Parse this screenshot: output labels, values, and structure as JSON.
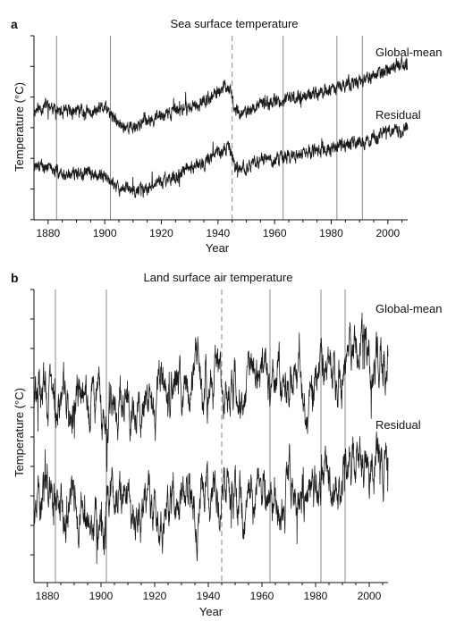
{
  "chart_data": [
    {
      "panel": "a",
      "type": "line",
      "title": "Sea surface temperature",
      "xlabel": "Year",
      "ylabel": "Temperature (°C)",
      "xlim": [
        1875,
        2007
      ],
      "x_ticks": [
        1880,
        1900,
        1920,
        1940,
        1960,
        1980,
        2000
      ],
      "y_tick_count": 7,
      "ylim": [
        -0.2,
        6.2
      ],
      "grid": false,
      "reference_lines": {
        "solid": [
          1883,
          1902,
          1963,
          1982,
          1991
        ],
        "dashed": [
          1945
        ]
      },
      "series": [
        {
          "name": "Global-mean",
          "x": [
            1875,
            1880,
            1885,
            1890,
            1895,
            1900,
            1905,
            1910,
            1915,
            1920,
            1925,
            1930,
            1935,
            1940,
            1942,
            1944,
            1946,
            1950,
            1955,
            1960,
            1965,
            1970,
            1975,
            1980,
            1985,
            1990,
            1995,
            2000,
            2005,
            2007
          ],
          "values": [
            3.6,
            3.8,
            3.5,
            3.6,
            3.5,
            3.7,
            3.1,
            3.0,
            3.3,
            3.4,
            3.6,
            3.7,
            3.9,
            4.2,
            4.5,
            4.4,
            3.6,
            3.5,
            3.8,
            3.9,
            4.0,
            4.1,
            4.2,
            4.3,
            4.5,
            4.6,
            4.8,
            5.0,
            5.3,
            5.1
          ]
        },
        {
          "name": "Residual",
          "x": [
            1875,
            1880,
            1885,
            1890,
            1895,
            1900,
            1905,
            1910,
            1915,
            1920,
            1925,
            1930,
            1935,
            1940,
            1942,
            1944,
            1946,
            1950,
            1955,
            1960,
            1965,
            1970,
            1975,
            1980,
            1985,
            1990,
            1995,
            2000,
            2005,
            2007
          ],
          "values": [
            1.7,
            1.6,
            1.4,
            1.4,
            1.4,
            1.3,
            0.9,
            0.8,
            0.9,
            1.1,
            1.3,
            1.6,
            1.8,
            2.1,
            2.2,
            2.3,
            1.6,
            1.6,
            1.9,
            1.9,
            2.0,
            2.1,
            2.2,
            2.3,
            2.4,
            2.5,
            2.6,
            2.9,
            2.9,
            3.0
          ]
        }
      ]
    },
    {
      "panel": "b",
      "type": "line",
      "title": "Land surface air temperature",
      "xlabel": "Year",
      "ylabel": "Temperature (°C)",
      "xlim": [
        1875,
        2007
      ],
      "x_ticks": [
        1880,
        1900,
        1920,
        1940,
        1960,
        1980,
        2000
      ],
      "y_tick_count": 10,
      "ylim": [
        -0.2,
        9.4
      ],
      "grid": false,
      "reference_lines": {
        "solid": [
          1883,
          1902,
          1963,
          1982,
          1991
        ],
        "dashed": [
          1945
        ]
      },
      "series": [
        {
          "name": "Global-mean",
          "x": [
            1875,
            1880,
            1885,
            1890,
            1895,
            1900,
            1905,
            1910,
            1915,
            1920,
            1925,
            1930,
            1935,
            1940,
            1945,
            1950,
            1955,
            1960,
            1965,
            1970,
            1975,
            1980,
            1985,
            1990,
            1995,
            2000,
            2005,
            2007
          ],
          "values": [
            5.6,
            5.9,
            5.4,
            5.7,
            5.5,
            5.8,
            5.5,
            5.6,
            5.8,
            5.9,
            6.1,
            6.1,
            6.2,
            6.3,
            6.2,
            6.1,
            6.2,
            6.3,
            6.1,
            6.2,
            6.3,
            6.5,
            6.6,
            6.8,
            7.0,
            7.4,
            7.8,
            7.7
          ]
        },
        {
          "name": "Residual",
          "x": [
            1875,
            1880,
            1885,
            1890,
            1895,
            1900,
            1905,
            1910,
            1915,
            1920,
            1925,
            1930,
            1935,
            1940,
            1945,
            1950,
            1955,
            1960,
            1965,
            1970,
            1975,
            1980,
            1985,
            1990,
            1995,
            2000,
            2005,
            2007
          ],
          "values": [
            2.1,
            2.4,
            2.0,
            2.2,
            2.1,
            2.3,
            1.9,
            2.0,
            2.2,
            2.4,
            2.5,
            2.6,
            2.6,
            2.8,
            2.7,
            2.6,
            2.6,
            2.7,
            2.6,
            2.7,
            2.8,
            2.9,
            3.1,
            3.4,
            3.6,
            3.9,
            4.2,
            4.0
          ]
        }
      ]
    }
  ]
}
